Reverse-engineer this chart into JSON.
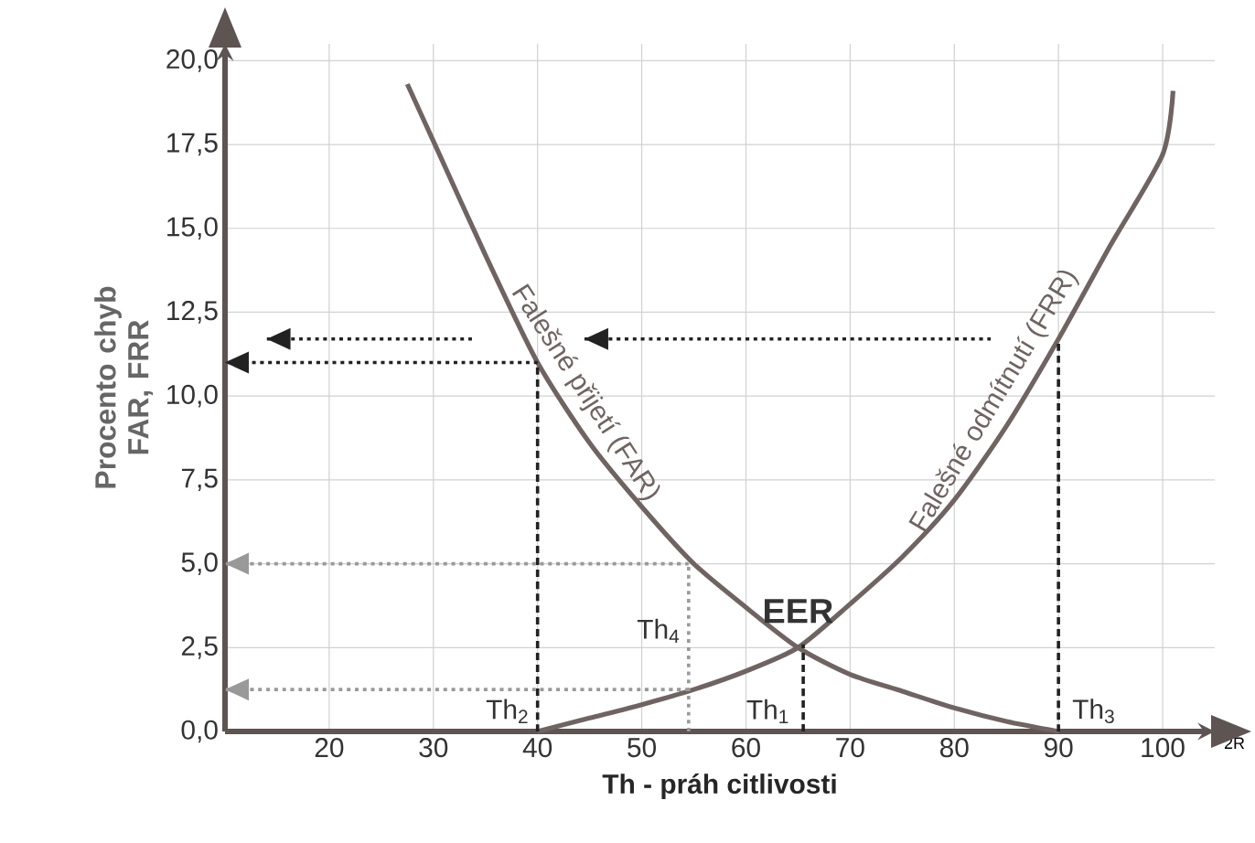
{
  "chart_data": {
    "type": "line",
    "xlabel": "Th - práh citlivosti",
    "ylabel": "Procento chyb FAR, FRR",
    "xlim": [
      10,
      105
    ],
    "ylim": [
      0,
      20.5
    ],
    "xticks": [
      20,
      30,
      40,
      50,
      60,
      70,
      80,
      90,
      100
    ],
    "yticks": [
      {
        "value": 0,
        "label": "0,0"
      },
      {
        "value": 2.5,
        "label": "2,5"
      },
      {
        "value": 5,
        "label": "5,0"
      },
      {
        "value": 7.5,
        "label": "7,5"
      },
      {
        "value": 10,
        "label": "10,0"
      },
      {
        "value": 12.5,
        "label": "12,5"
      },
      {
        "value": 15,
        "label": "15,0"
      },
      {
        "value": 17.5,
        "label": "17,5"
      },
      {
        "value": 20,
        "label": "20,0"
      }
    ],
    "grid": true,
    "line_style": "solid",
    "series": [
      {
        "name": "Falešné přijetí (FAR)",
        "color": "#6f6461",
        "x": [
          27.5,
          30,
          35,
          40,
          45,
          50,
          55,
          60,
          65,
          70,
          75,
          80,
          85,
          90
        ],
        "values": [
          19.3,
          17.6,
          14.2,
          11.0,
          8.6,
          6.7,
          5.0,
          3.7,
          2.5,
          1.7,
          1.2,
          0.7,
          0.3,
          0.0
        ]
      },
      {
        "name": "Falešné odmítnutí (FRR)",
        "color": "#6f6461",
        "x": [
          40,
          45,
          50,
          55,
          60,
          65,
          70,
          75,
          80,
          85,
          90,
          95,
          100,
          101
        ],
        "values": [
          0,
          0.4,
          0.8,
          1.25,
          1.8,
          2.5,
          3.8,
          5.2,
          6.9,
          9.1,
          11.7,
          14.5,
          17.2,
          19.1
        ]
      },
      {
        "color": "#222222",
        "line_style": "dashed",
        "x": [
          40,
          40
        ],
        "values": [
          0,
          11.0
        ]
      },
      {
        "color": "#222222",
        "line_style": "dotted",
        "x": [
          40,
          10
        ],
        "values": [
          11.0,
          11.0
        ]
      },
      {
        "color": "#222222",
        "line_style": "dashed",
        "x": [
          90,
          90
        ],
        "values": [
          0,
          11.7
        ]
      },
      {
        "color": "#222222",
        "line_style": "dotted",
        "x": [
          83.5,
          44.5
        ],
        "values": [
          11.7,
          11.7
        ]
      },
      {
        "color": "#222222",
        "line_style": "dotted",
        "x": [
          33.7,
          14
        ],
        "values": [
          11.7,
          11.7
        ]
      },
      {
        "color": "#999999",
        "line_style": "dotted",
        "x": [
          54.5,
          54.5
        ],
        "values": [
          0,
          5.0
        ]
      },
      {
        "color": "#999999",
        "line_style": "dotted",
        "x": [
          54.5,
          10
        ],
        "values": [
          5.0,
          5.0
        ]
      },
      {
        "color": "#999999",
        "line_style": "dotted",
        "x": [
          54.5,
          10
        ],
        "values": [
          1.25,
          1.25
        ]
      },
      {
        "color": "#222222",
        "line_style": "dashed",
        "x": [
          65.5,
          65.5
        ],
        "values": [
          0,
          2.6
        ]
      }
    ],
    "annotations": [
      {
        "text": "EER",
        "x": 65,
        "y": 2.5
      },
      {
        "text": "Th$_{1}$",
        "x": 65,
        "y": 0
      },
      {
        "text": "Th$_{2}$",
        "x": 40,
        "y": 0
      },
      {
        "text": "Th$_{3}$",
        "x": 90,
        "y": 0
      },
      {
        "text": "Th$_{4}$",
        "x": 54.5,
        "y": 3
      },
      "2R"
    ]
  }
}
